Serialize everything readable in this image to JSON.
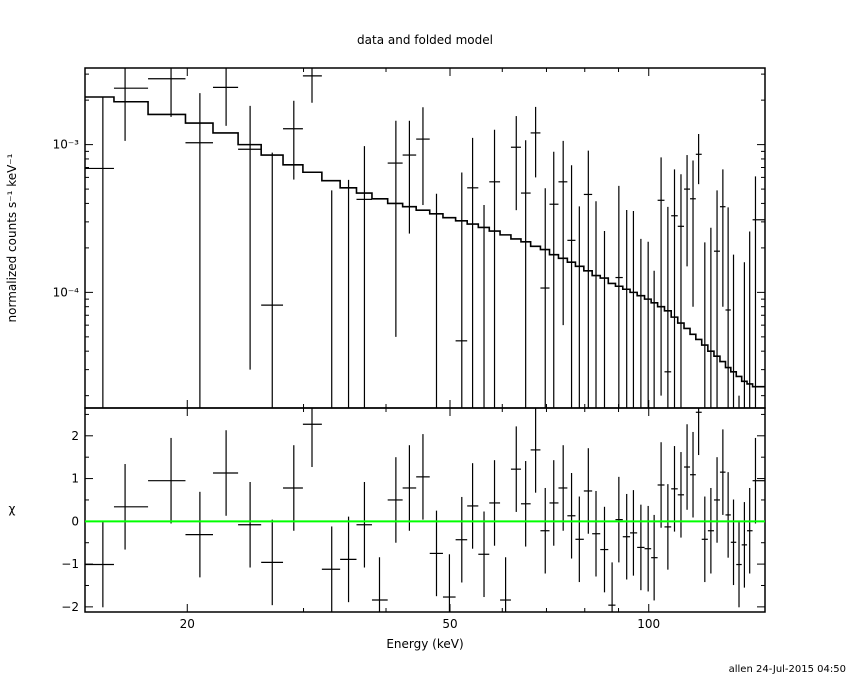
{
  "chart_data": [
    {
      "panel": "top",
      "type": "scatter",
      "title": "data and folded model",
      "xlabel": "Energy (keV)",
      "ylabel": "normalized counts s⁻¹ keV⁻¹",
      "xscale": "log",
      "yscale": "log",
      "xlim": [
        14,
        150
      ],
      "ylim": [
        1.65e-05,
        0.0033
      ],
      "ytick_labels": [
        {
          "value": 0.001,
          "label": "10⁻³"
        },
        {
          "value": 0.0001,
          "label": "10⁻⁴"
        }
      ],
      "grid": false,
      "data_color": "#000000",
      "model_color": "#000000",
      "energy": [
        14.9,
        16.1,
        18.9,
        20.9,
        22.9,
        24.9,
        26.9,
        29.0,
        30.9,
        33.1,
        35.1,
        37.1,
        39.1,
        41.4,
        43.4,
        45.5,
        47.7,
        49.9,
        52.1,
        54.1,
        56.3,
        58.4,
        60.7,
        63.0,
        65.1,
        67.4,
        69.7,
        71.8,
        74.2,
        76.4,
        78.5,
        81.0,
        83.2,
        85.7,
        88.0,
        90.1,
        92.6,
        94.8,
        97.3,
        99.8,
        101.9,
        104.4,
        106.9,
        109.4,
        111.9,
        114.3,
        116.7,
        119.0,
        121.6,
        124.2,
        126.9,
        129.5,
        131.9,
        134.4,
        137.0,
        139.6,
        142.2,
        145.1
      ],
      "rate": [
        0.00069,
        0.00241,
        0.00279,
        0.00103,
        0.00244,
        0.00093,
        8.2e-05,
        0.00128,
        0.00292,
        -0.00016,
        -2.3e-05,
        0.000426,
        -0.00058,
        0.00075,
        0.00085,
        0.00109,
        -3.5e-05,
        -0.00057,
        4.7e-05,
        0.00051,
        -0.00011,
        0.00056,
        -0.00068,
        0.00096,
        0.00047,
        0.0012,
        0.000107,
        0.000395,
        0.00056,
        0.000225,
        -1.8e-05,
        0.00046,
        1.4e-05,
        -0.00014,
        -0.00067,
        0.000126,
        -3.9e-05,
        5.5e-06,
        -0.00012,
        -0.00013,
        -0.00021,
        0.00042,
        2.9e-05,
        0.00033,
        0.00028,
        0.0005,
        0.00043,
        0.00086,
        -8.2e-05,
        -2.6e-05,
        0.00019,
        0.00038,
        7.6e-05,
        -0.00012,
        -0.00028,
        -0.00014,
        -4.2e-05,
        0.00031
      ],
      "rate_err": [
        0.0014,
        0.00135,
        0.00125,
        0.0012,
        0.0011,
        0.0009,
        0.0008,
        0.0007,
        0.001,
        0.00065,
        0.0006,
        0.00055,
        0.00055,
        0.0007,
        0.0006,
        0.0007,
        0.0005,
        0.0005,
        0.0006,
        0.0006,
        0.0005,
        0.0007,
        0.0005,
        0.0006,
        0.0006,
        0.0006,
        0.0004,
        0.0005,
        0.0005,
        0.0005,
        0.0004,
        0.00045,
        0.0004,
        0.0004,
        0.0004,
        0.0004,
        0.0004,
        0.00035,
        0.00035,
        0.00035,
        0.00035,
        0.0004,
        0.00035,
        0.00035,
        0.00035,
        0.00035,
        0.00035,
        0.00032,
        0.0003,
        0.0003,
        0.0003,
        0.0003,
        0.0003,
        0.0003,
        0.0003,
        0.0003,
        0.0003,
        0.0003
      ],
      "model": [
        0.0021,
        0.00195,
        0.0016,
        0.0014,
        0.0012,
        0.001,
        0.00085,
        0.00073,
        0.00065,
        0.00057,
        0.00051,
        0.00047,
        0.00043,
        0.0004,
        0.00038,
        0.00036,
        0.00034,
        0.00032,
        0.000305,
        0.00029,
        0.000275,
        0.00026,
        0.000245,
        0.00023,
        0.00022,
        0.000205,
        0.000195,
        0.00018,
        0.00017,
        0.00016,
        0.00015,
        0.00014,
        0.00013,
        0.000125,
        0.000115,
        0.00011,
        0.000105,
        0.0001,
        9.5e-05,
        9e-05,
        8.5e-05,
        8e-05,
        7.5e-05,
        6.8e-05,
        6.2e-05,
        5.7e-05,
        5.2e-05,
        4.8e-05,
        4.4e-05,
        4e-05,
        3.7e-05,
        3.4e-05,
        3.1e-05,
        2.9e-05,
        2.7e-05,
        2.5e-05,
        2.4e-05,
        2.3e-05
      ]
    },
    {
      "panel": "bottom",
      "type": "scatter",
      "ylabel": "χ",
      "xlabel": "Energy (keV)",
      "xscale": "log",
      "xlim": [
        14,
        150
      ],
      "ylim": [
        -2.12,
        2.65
      ],
      "xtick_labels": [
        {
          "value": 20,
          "label": "20"
        },
        {
          "value": 50,
          "label": "50"
        },
        {
          "value": 100,
          "label": "100"
        }
      ],
      "ytick_labels": [
        {
          "value": 2,
          "label": "2"
        },
        {
          "value": 1,
          "label": "1"
        },
        {
          "value": 0,
          "label": "0"
        },
        {
          "value": -1,
          "label": "−1"
        },
        {
          "value": -2,
          "label": "−2"
        }
      ],
      "zero_line_color": "#00ff00",
      "chi": [
        -1.01,
        0.34,
        0.95,
        -0.31,
        1.13,
        -0.08,
        -0.96,
        0.78,
        2.27,
        -1.12,
        -0.89,
        -0.08,
        -1.84,
        0.5,
        0.78,
        1.04,
        -0.75,
        -1.77,
        -0.43,
        0.36,
        -0.77,
        0.43,
        -1.84,
        1.22,
        0.41,
        1.67,
        -0.22,
        0.43,
        0.78,
        0.13,
        -0.42,
        0.71,
        -0.29,
        -0.66,
        -1.96,
        0.04,
        -0.36,
        -0.27,
        -0.61,
        -0.64,
        -0.85,
        0.85,
        -0.13,
        0.76,
        0.62,
        1.27,
        1.09,
        2.55,
        -0.42,
        -0.22,
        0.5,
        1.15,
        0.15,
        -0.49,
        -1.01,
        -0.55,
        -0.22,
        0.95
      ]
    }
  ],
  "footer": "allen 24-Jul-2015 04:50"
}
